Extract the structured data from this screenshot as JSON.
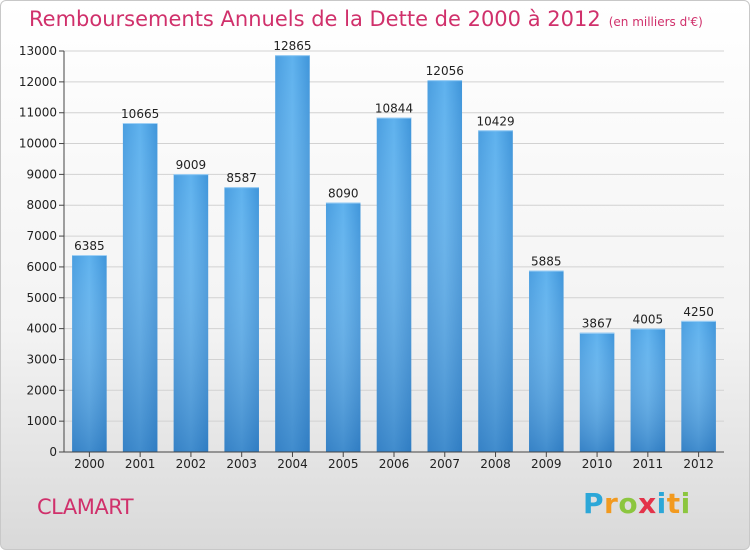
{
  "title": "Remboursements Annuels de la Dette de 2000 à 2012",
  "subtitle": "(en milliers d'€)",
  "city": "CLAMART",
  "logo": {
    "letters": [
      "P",
      "r",
      "o",
      "x",
      "i",
      "t",
      "i"
    ],
    "colors": [
      "#2ca7d8",
      "#f29a1f",
      "#8cc63f",
      "#e3334a",
      "#2ca7d8",
      "#f29a1f",
      "#8cc63f"
    ]
  },
  "colors": {
    "bar": "#3b8fd6",
    "bar_light": "#5aacea",
    "title": "#d0306b"
  },
  "chart_data": {
    "type": "bar",
    "categories": [
      "2000",
      "2001",
      "2002",
      "2003",
      "2004",
      "2005",
      "2006",
      "2007",
      "2008",
      "2009",
      "2010",
      "2011",
      "2012"
    ],
    "values": [
      6385,
      10665,
      9009,
      8587,
      12865,
      8090,
      10844,
      12056,
      10429,
      5885,
      3867,
      4005,
      4250
    ],
    "title": "Remboursements Annuels de la Dette de 2000 à 2012",
    "subtitle": "(en milliers d'€)",
    "ylim": [
      0,
      13000
    ],
    "yticks": [
      0,
      1000,
      2000,
      3000,
      4000,
      5000,
      6000,
      7000,
      8000,
      9000,
      10000,
      11000,
      12000,
      13000
    ],
    "grid": true,
    "data_labels": true
  }
}
